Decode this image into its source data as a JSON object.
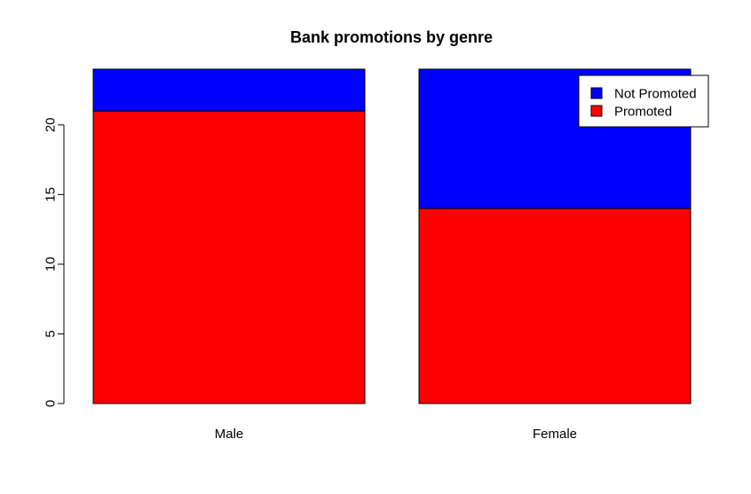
{
  "chart_data": {
    "type": "bar",
    "stacked": true,
    "title": "Bank promotions by genre",
    "xlabel": "",
    "ylabel": "",
    "categories": [
      "Male",
      "Female"
    ],
    "series": [
      {
        "name": "Promoted",
        "values": [
          21,
          14
        ],
        "color": "#ff0000"
      },
      {
        "name": "Not Promoted",
        "values": [
          3,
          10
        ],
        "color": "#0000ff"
      }
    ],
    "ylim": [
      0,
      24
    ],
    "yticks": [
      0,
      5,
      10,
      15,
      20
    ],
    "grid": false,
    "legend_position": "top-right",
    "legend_order": [
      "Not Promoted",
      "Promoted"
    ]
  }
}
